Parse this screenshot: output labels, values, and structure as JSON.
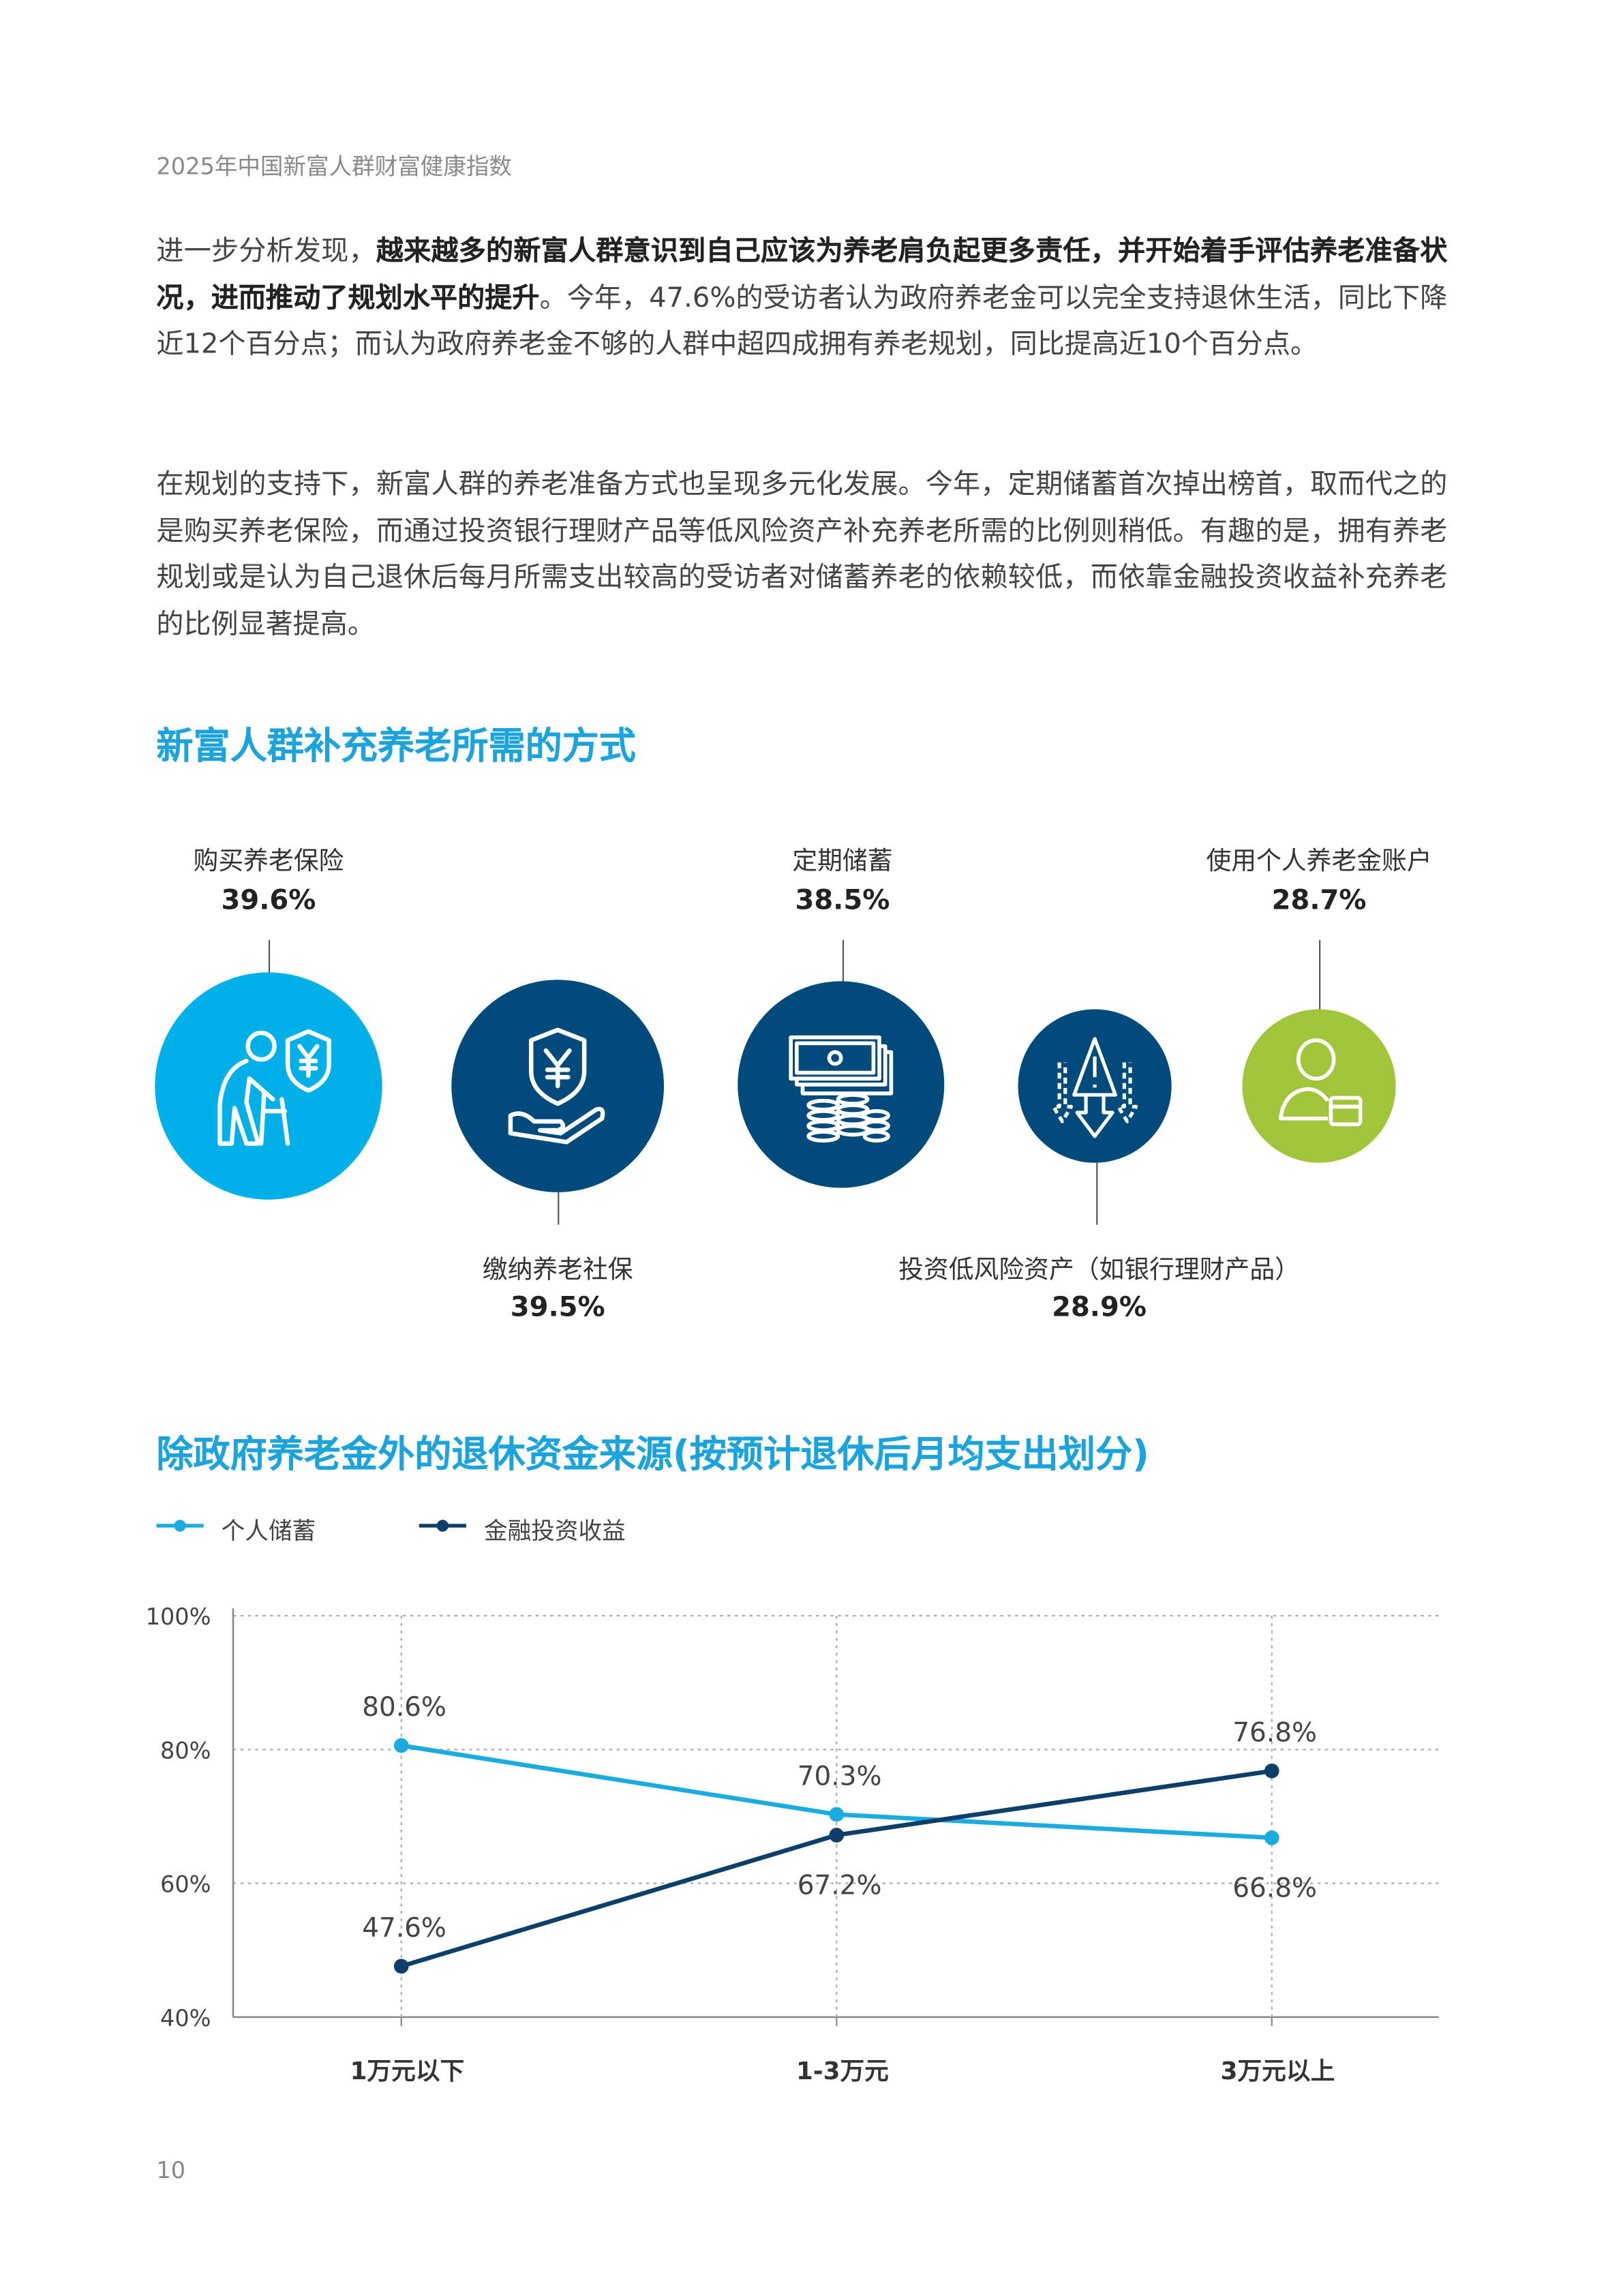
{
  "header": {
    "title": "2025年中国新富人群财富健康指数"
  },
  "body": {
    "p1_normal_1": "进一步分析发现，",
    "p1_bold": "越来越多的新富人群意识到自己应该为养老肩负起更多责任，并开始着手评估养老准备状况，进而推动了规划水平的提升",
    "p1_normal_2": "。今年，47.6%的受访者认为政府养老金可以完全支持退休生活，同比下降近12个百分点；而认为政府养老金不够的人群中超四成拥有养老规划，同比提高近10个百分点。",
    "p2": "在规划的支持下，新富人群的养老准备方式也呈现多元化发展。今年，定期储蓄首次掉出榜首，取而代之的是购买养老保险，而通过投资银行理财产品等低风险资产补充养老所需的比例则稍低。有趣的是，拥有养老规划或是认为自己退休后每月所需支出较高的受访者对储蓄养老的依赖较低，而依靠金融投资收益补充养老的比例显著提高。"
  },
  "methods": {
    "title": "新富人群补充养老所需的方式",
    "items": [
      {
        "label": "购买养老保险",
        "value": "39.6%",
        "icon": "elderly-insurance-icon",
        "color": "#00b0e8"
      },
      {
        "label": "缴纳养老社保",
        "value": "39.5%",
        "icon": "yuan-shield-hand-icon",
        "color": "#004a7c"
      },
      {
        "label": "定期储蓄",
        "value": "38.5%",
        "icon": "cash-coins-icon",
        "color": "#004a7c"
      },
      {
        "label": "投资低风险资产（如银行理财产品）",
        "value": "28.9%",
        "icon": "low-risk-alert-icon",
        "color": "#004a7c"
      },
      {
        "label": "使用个人养老金账户",
        "value": "28.7%",
        "icon": "person-card-icon",
        "color": "#a0c43a"
      }
    ]
  },
  "chart_data": {
    "type": "line",
    "title": "除政府养老金外的退休资金来源(按预计退休后月均支出划分)",
    "categories": [
      "1万元以下",
      "1-3万元",
      "3万元以上"
    ],
    "series": [
      {
        "name": "个人储蓄",
        "values": [
          80.6,
          70.3,
          66.8
        ],
        "labels": [
          "80.6%",
          "70.3%",
          "66.8%"
        ],
        "color": "#1aace0"
      },
      {
        "name": "金融投资收益",
        "values": [
          47.6,
          67.2,
          76.8
        ],
        "labels": [
          "47.6%",
          "67.2%",
          "76.8%"
        ],
        "color": "#0d3f6b"
      }
    ],
    "ylim": [
      40,
      100
    ],
    "yticks": [
      "40%",
      "60%",
      "80%",
      "100%"
    ],
    "grid": true,
    "legend": "top-left"
  },
  "footer": {
    "page_number": "10"
  }
}
